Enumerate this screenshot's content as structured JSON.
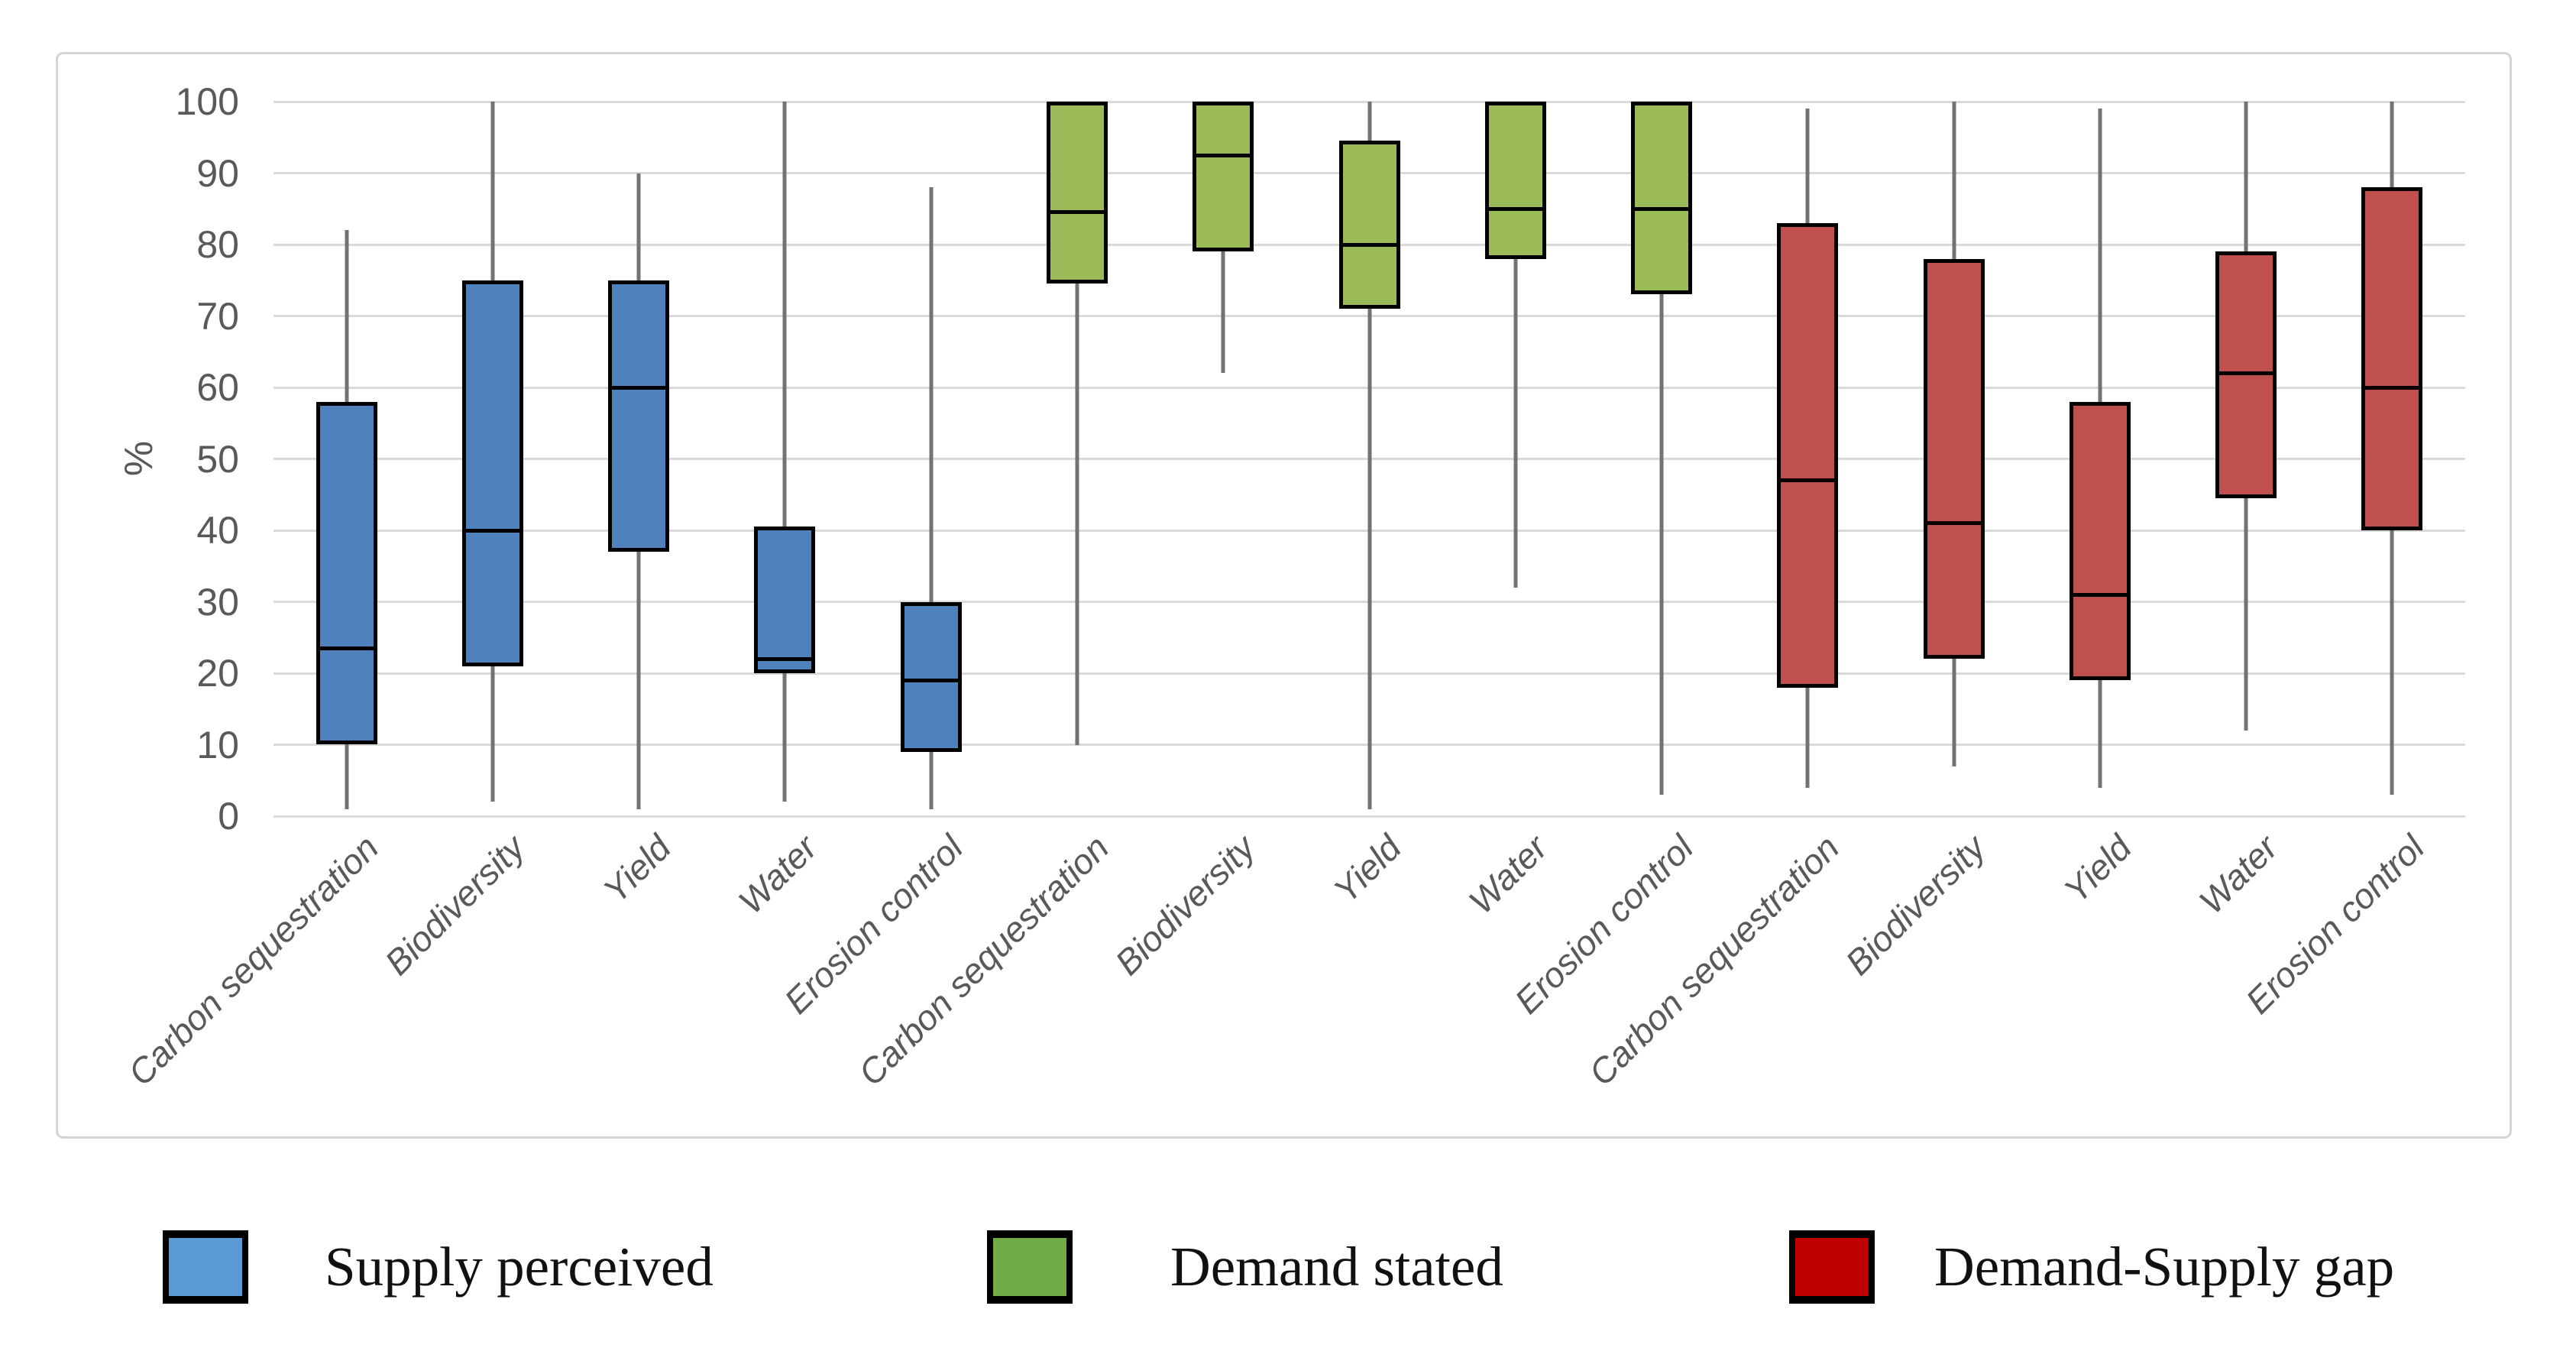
{
  "chart_data": {
    "type": "boxplot",
    "title": "",
    "ylabel": "%",
    "xlabel": "",
    "ylim": [
      0,
      100
    ],
    "yticks": [
      0,
      10,
      20,
      30,
      40,
      50,
      60,
      70,
      80,
      90,
      100
    ],
    "grid": true,
    "legend_position": "bottom",
    "categories": [
      "Carbon sequestration",
      "Biodiversity",
      "Yield",
      "Water",
      "Erosion control"
    ],
    "series": [
      {
        "name": "Supply perceived",
        "box_color": "#4F81BD",
        "boxes": [
          {
            "category": "Carbon sequestration",
            "min": 1,
            "q1": 10,
            "median": 23.5,
            "q3": 58,
            "max": 82
          },
          {
            "category": "Biodiversity",
            "min": 2,
            "q1": 21,
            "median": 40,
            "q3": 75,
            "max": 100
          },
          {
            "category": "Yield",
            "min": 1,
            "q1": 37,
            "median": 60,
            "q3": 75,
            "max": 90
          },
          {
            "category": "Water",
            "min": 2,
            "q1": 20,
            "median": 22,
            "q3": 40.5,
            "max": 100
          },
          {
            "category": "Erosion control",
            "min": 1,
            "q1": 9,
            "median": 19,
            "q3": 30,
            "max": 88
          }
        ]
      },
      {
        "name": "Demand stated",
        "box_color": "#9BBB59",
        "boxes": [
          {
            "category": "Carbon sequestration",
            "min": 10,
            "q1": 74.5,
            "median": 84.5,
            "q3": 100,
            "max": 100
          },
          {
            "category": "Biodiversity",
            "min": 62,
            "q1": 79,
            "median": 92.5,
            "q3": 100,
            "max": 100
          },
          {
            "category": "Yield",
            "min": 1,
            "q1": 71,
            "median": 80,
            "q3": 94.5,
            "max": 100
          },
          {
            "category": "Water",
            "min": 32,
            "q1": 78,
            "median": 85,
            "q3": 100,
            "max": 100
          },
          {
            "category": "Erosion control",
            "min": 3,
            "q1": 73,
            "median": 85,
            "q3": 100,
            "max": 100
          }
        ]
      },
      {
        "name": "Demand-Supply gap",
        "box_color": "#C0504D",
        "boxes": [
          {
            "category": "Carbon sequestration",
            "min": 4,
            "q1": 18,
            "median": 47,
            "q3": 83,
            "max": 99
          },
          {
            "category": "Biodiversity",
            "min": 7,
            "q1": 22,
            "median": 41,
            "q3": 78,
            "max": 100
          },
          {
            "category": "Yield",
            "min": 4,
            "q1": 19,
            "median": 31,
            "q3": 58,
            "max": 99
          },
          {
            "category": "Water",
            "min": 12,
            "q1": 44.5,
            "median": 62,
            "q3": 79,
            "max": 100
          },
          {
            "category": "Erosion control",
            "min": 3,
            "q1": 40,
            "median": 60,
            "q3": 88,
            "max": 100
          }
        ]
      }
    ],
    "legend": {
      "items": [
        {
          "label": "Supply perceived",
          "color": "#5B9BD5"
        },
        {
          "label": "Demand stated",
          "color": "#70AD47"
        },
        {
          "label": "Demand-Supply gap",
          "color": "#C00000"
        }
      ]
    },
    "style_colors": {
      "whisker": "#737373",
      "box_border": "#000000",
      "gridline": "#DADADA",
      "tick_text": "#595959"
    }
  }
}
